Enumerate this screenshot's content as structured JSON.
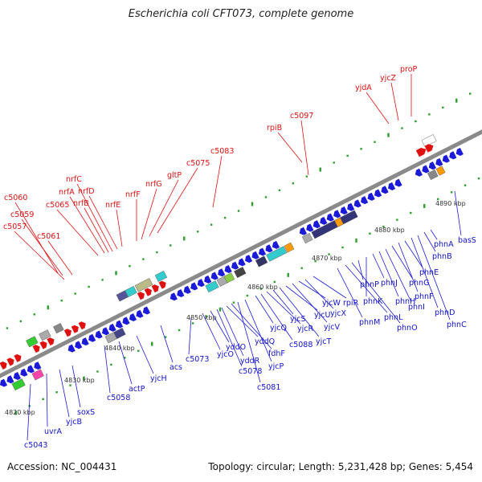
{
  "title": "Escherichia coli CFT073, complete genome",
  "footer": {
    "accession": "Accession: NC_004431",
    "stats": "Topology: circular; Length: 5,231,428 bp; Genes: 5,454"
  },
  "colors": {
    "forward": "#e01010",
    "reverse": "#1a1ad8",
    "backbone": "#8a8a8a",
    "tick": "#2e9e2e"
  },
  "scale_labels": [
    "4820 kbp",
    "4830 kbp",
    "4840 kbp",
    "4850 kbp",
    "4860 kbp",
    "4870 kbp",
    "4880 kbp",
    "4890 kbp"
  ],
  "top_labels": [
    "c5057",
    "c5059",
    "c5060",
    "c5061",
    "c5065",
    "nrfA",
    "nrfB",
    "nrfC",
    "nrfD",
    "nrfE",
    "nrfF",
    "nrfG",
    "gltP",
    "c5075",
    "c5083",
    "rpiB",
    "c5097",
    "yjdA",
    "yjcZ",
    "proP"
  ],
  "bottom_labels": [
    "c5043",
    "uvrA",
    "yjcB",
    "soxS",
    "c5058",
    "actP",
    "yjcH",
    "acs",
    "c5073",
    "yjcO",
    "yddO",
    "c5078",
    "yddR",
    "yddQ",
    "fdhF",
    "c5081",
    "yjcP",
    "yjcQ",
    "c5088",
    "yjcR",
    "yjcS",
    "yjcT",
    "yjcU",
    "yjcV",
    "yjcW",
    "yjcX",
    "rpiR",
    "phnM",
    "phnL",
    "phnO",
    "phnP",
    "phnK",
    "phnJ",
    "phnH",
    "phnI",
    "phnG",
    "phnF",
    "phnE",
    "phnD",
    "phnC",
    "phnB",
    "phnA",
    "basS"
  ]
}
